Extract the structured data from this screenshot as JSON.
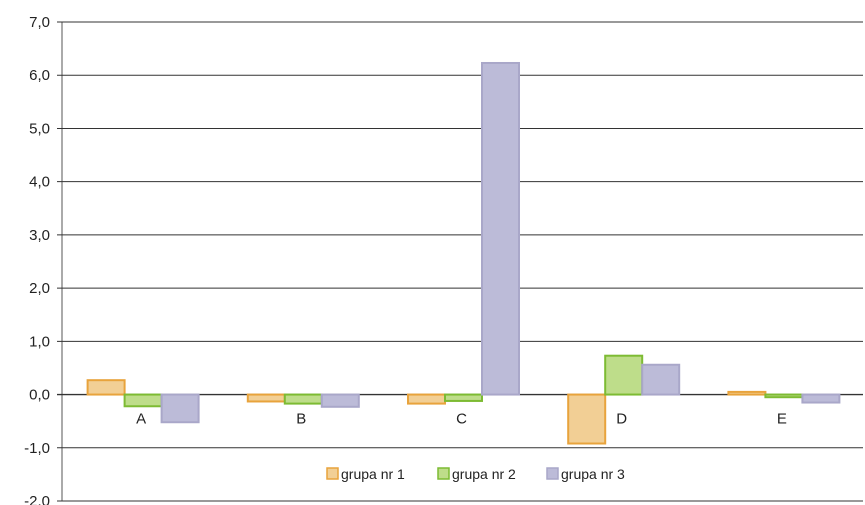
{
  "chart_data": {
    "type": "bar",
    "categories": [
      "A",
      "B",
      "C",
      "D",
      "E"
    ],
    "series": [
      {
        "name": "grupa nr 1",
        "values": [
          0.27,
          -0.13,
          -0.17,
          -0.92,
          0.05
        ],
        "fill": "#F2CF95",
        "stroke": "#E8A33C"
      },
      {
        "name": "grupa nr 2",
        "values": [
          -0.22,
          -0.17,
          -0.12,
          0.73,
          -0.05
        ],
        "fill": "#BEDD8A",
        "stroke": "#7DBB33"
      },
      {
        "name": "grupa nr 3",
        "values": [
          -0.52,
          -0.23,
          6.23,
          0.56,
          -0.15
        ],
        "fill": "#BCBBD8",
        "stroke": "#A9A7C9"
      }
    ],
    "ylim": [
      -2.0,
      7.0
    ],
    "yticks": [
      "-2,0",
      "-1,0",
      "0,0",
      "1,0",
      "2,0",
      "3,0",
      "4,0",
      "5,0",
      "6,0",
      "7,0"
    ],
    "grid": true,
    "legend": "bottom-center"
  }
}
